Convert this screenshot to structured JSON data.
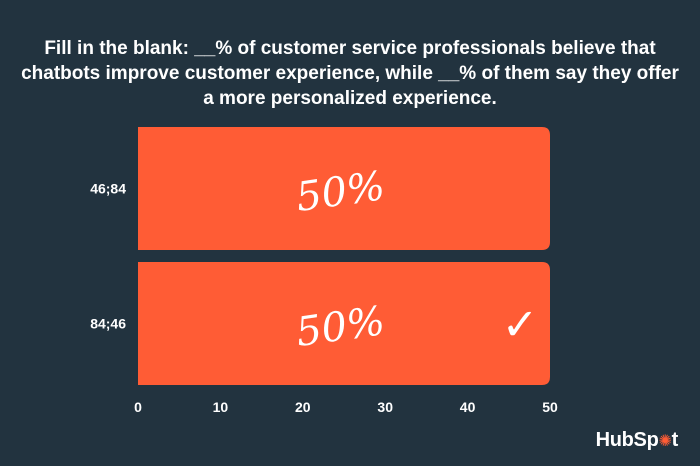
{
  "question": "Fill in the blank: __% of customer service professionals believe that chatbots improve customer experience, while __% of them say they offer a more personalized experience.",
  "chart_data": {
    "type": "bar",
    "orientation": "horizontal",
    "categories": [
      "46;84",
      "84;46"
    ],
    "values": [
      50,
      50
    ],
    "bar_labels": [
      "50%",
      "50%"
    ],
    "correct_answer": "84;46",
    "xlim": [
      0,
      50
    ],
    "xticks": [
      0,
      10,
      20,
      30,
      40,
      50
    ],
    "bar_color": "#ff5c35",
    "grid": false
  },
  "logo": {
    "text_before": "HubSp",
    "text_after": "t"
  }
}
